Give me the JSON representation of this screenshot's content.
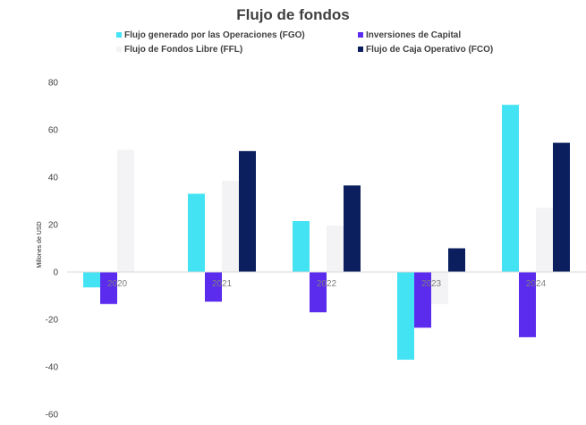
{
  "chart_data": {
    "type": "bar",
    "title": "Flujo de fondos",
    "ylabel": "Millones de USD",
    "xlabel": "",
    "ylim": [
      -60,
      80
    ],
    "yticks": [
      80,
      60,
      40,
      20,
      0,
      -20,
      -40,
      -60
    ],
    "grid": false,
    "legend_position": "top",
    "categories": [
      "2020",
      "2021",
      "2022",
      "2023",
      "2024"
    ],
    "series": [
      {
        "name": "Flujo generado por las Operaciones (FGO)",
        "color": "#44e3f4",
        "values": [
          -6.5,
          33,
          21.5,
          -37,
          70.5
        ]
      },
      {
        "name": "Inversiones de Capital",
        "color": "#5b2bee",
        "values": [
          -13.5,
          -12.5,
          -17,
          -23.5,
          -27.5
        ]
      },
      {
        "name": "Flujo de Fondos Libre (FFL)",
        "color": "#f3f2f5",
        "values": [
          51.5,
          38.5,
          19.5,
          -13.5,
          27
        ]
      },
      {
        "name": "Flujo de Caja Operativo (FCO)",
        "color": "#0b1f5e",
        "values": [
          null,
          51,
          36.5,
          10,
          54.5
        ]
      }
    ]
  }
}
